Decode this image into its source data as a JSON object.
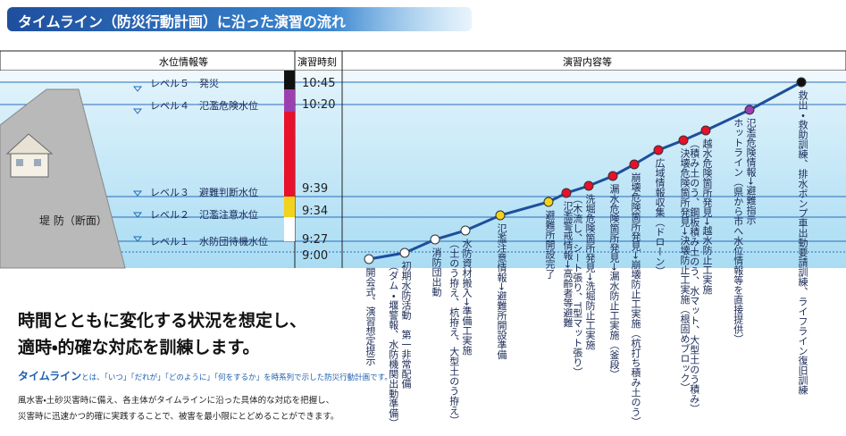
{
  "header": {
    "title": "タイムライン（防災行動計画）に沿った演習の流れ"
  },
  "columns": {
    "water_level": "水位情報等",
    "time": "演習時刻",
    "content": "演習内容等"
  },
  "levels": [
    "レベル５　発災",
    "レベル４　氾濫危険水位",
    "レベル３　避難判断水位",
    "レベル２　氾濫注意水位",
    "レベル１　水防団待機水位"
  ],
  "times": [
    "10:45",
    "10:20",
    "9:39",
    "9:34",
    "9:27",
    "9:00"
  ],
  "embankment": "堤 防（断面）",
  "events": [
    {
      "lines": [
        "開会式、演習想定提示"
      ],
      "color": "#ffffff"
    },
    {
      "lines": [
        "初期水防活動　第一非常配備",
        "（ダム・堰警報、水防機関出動準備）"
      ],
      "color": "#ffffff"
    },
    {
      "lines": [
        "消防団出動"
      ],
      "color": "#ffffff"
    },
    {
      "lines": [
        "水防資材搬入→準備工実施",
        "（土のう拵え、杭拵え、大型土のう拵え）"
      ],
      "color": "#ffffff"
    },
    {
      "lines": [
        "氾濫注意情報→避難所開設準備"
      ],
      "color": "#f2d21a"
    },
    {
      "lines": [
        "避難所開設完了"
      ],
      "color": "#f2d21a"
    },
    {
      "lines": [
        "氾濫警戒情報→高齢者等避難"
      ],
      "color": "#e8102a"
    },
    {
      "lines": [
        "洗堀危険箇所発見→洗堀防止工実施",
        "（木流し、シート張り、T型マット張り）"
      ],
      "color": "#e8102a"
    },
    {
      "lines": [
        "漏水危険箇所発見→漏水防止工実施（釜段）"
      ],
      "color": "#e8102a"
    },
    {
      "lines": [
        "崩壊危険箇所発見→崩壊防止工実施（杭打ち積み土のう）"
      ],
      "color": "#e8102a"
    },
    {
      "lines": [
        "広域情報収集（ドローン）"
      ],
      "color": "#e8102a"
    },
    {
      "lines": [
        "決壊危険箇所発見→決壊防止工実施（根固めブロック）"
      ],
      "color": "#e8102a"
    },
    {
      "lines": [
        "越水危険箇所発見→越水防止工実施",
        "（積み土のう、鋼板積み土のう、水マット、大型土のう積み）"
      ],
      "color": "#e8102a"
    },
    {
      "lines": [
        "氾濫危険情報→避難指示",
        "ホットライン（県から市へ水位情報等を直接提供）"
      ],
      "color": "#9b3fb0"
    },
    {
      "lines": [
        "救出・救助訓練、排水ポンプ車出動要請訓練、ライフライン復旧訓練"
      ],
      "color": "#111111"
    }
  ],
  "message": [
    "時間とともに変化する状況を想定し、",
    "適時・的確な対応を訓練します。"
  ],
  "definition": {
    "term": "タイムライン",
    "text": "とは、「いつ」「だれが」「どのように」「何をするか」を時系列で示した防災行動計画です。"
  },
  "body": [
    "風水害・土砂災害時に備え、各主体がタイムラインに沿った具体的な対応を把握し、",
    "災害時に迅速かつ的確に実践することで、被害を最小限にとどめることができます。"
  ]
}
